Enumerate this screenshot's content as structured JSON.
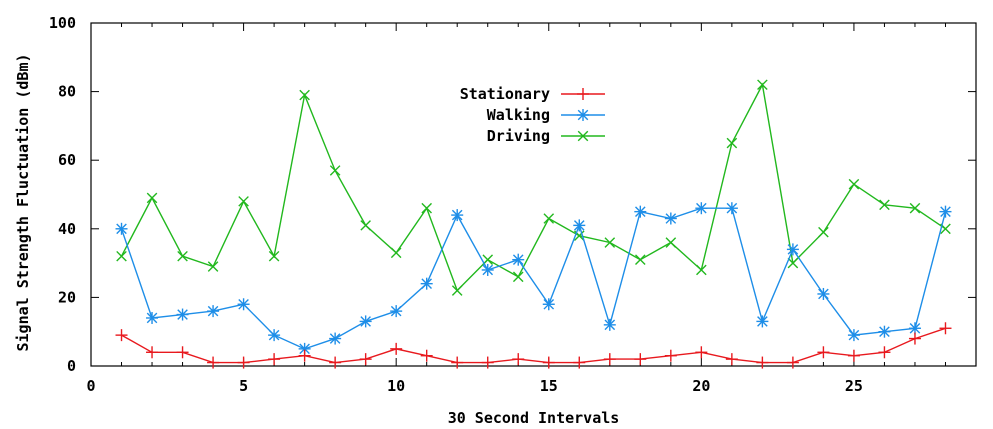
{
  "chart_data": {
    "type": "line",
    "title": "",
    "xlabel": "30 Second Intervals",
    "ylabel": "Signal Strength Fluctuation (dBm)",
    "xlim": [
      0,
      29
    ],
    "ylim": [
      0,
      100
    ],
    "xticks": [
      0,
      5,
      10,
      15,
      20,
      25
    ],
    "yticks": [
      0,
      20,
      40,
      60,
      80,
      100
    ],
    "grid": false,
    "legend": "upper-center",
    "x": [
      1,
      2,
      3,
      4,
      5,
      6,
      7,
      8,
      9,
      10,
      11,
      12,
      13,
      14,
      15,
      16,
      17,
      18,
      19,
      20,
      21,
      22,
      23,
      24,
      25,
      26,
      27,
      28
    ],
    "series": [
      {
        "name": "Stationary",
        "color": "#e8191e",
        "marker": "plus",
        "values": [
          9,
          4,
          4,
          1,
          1,
          2,
          3,
          1,
          2,
          5,
          3,
          1,
          1,
          2,
          1,
          1,
          2,
          2,
          3,
          4,
          2,
          1,
          1,
          4,
          3,
          4,
          8,
          11
        ]
      },
      {
        "name": "Walking",
        "color": "#1e8ee8",
        "marker": "star",
        "values": [
          40,
          14,
          15,
          16,
          18,
          9,
          5,
          8,
          13,
          16,
          24,
          44,
          28,
          31,
          18,
          41,
          12,
          45,
          43,
          46,
          46,
          13,
          34,
          21,
          9,
          10,
          11,
          45
        ]
      },
      {
        "name": "Driving",
        "color": "#22b81e",
        "marker": "x",
        "values": [
          32,
          49,
          32,
          29,
          48,
          32,
          79,
          57,
          41,
          33,
          46,
          22,
          31,
          26,
          43,
          38,
          36,
          31,
          36,
          28,
          65,
          82,
          30,
          39,
          53,
          47,
          46,
          40
        ]
      }
    ]
  }
}
